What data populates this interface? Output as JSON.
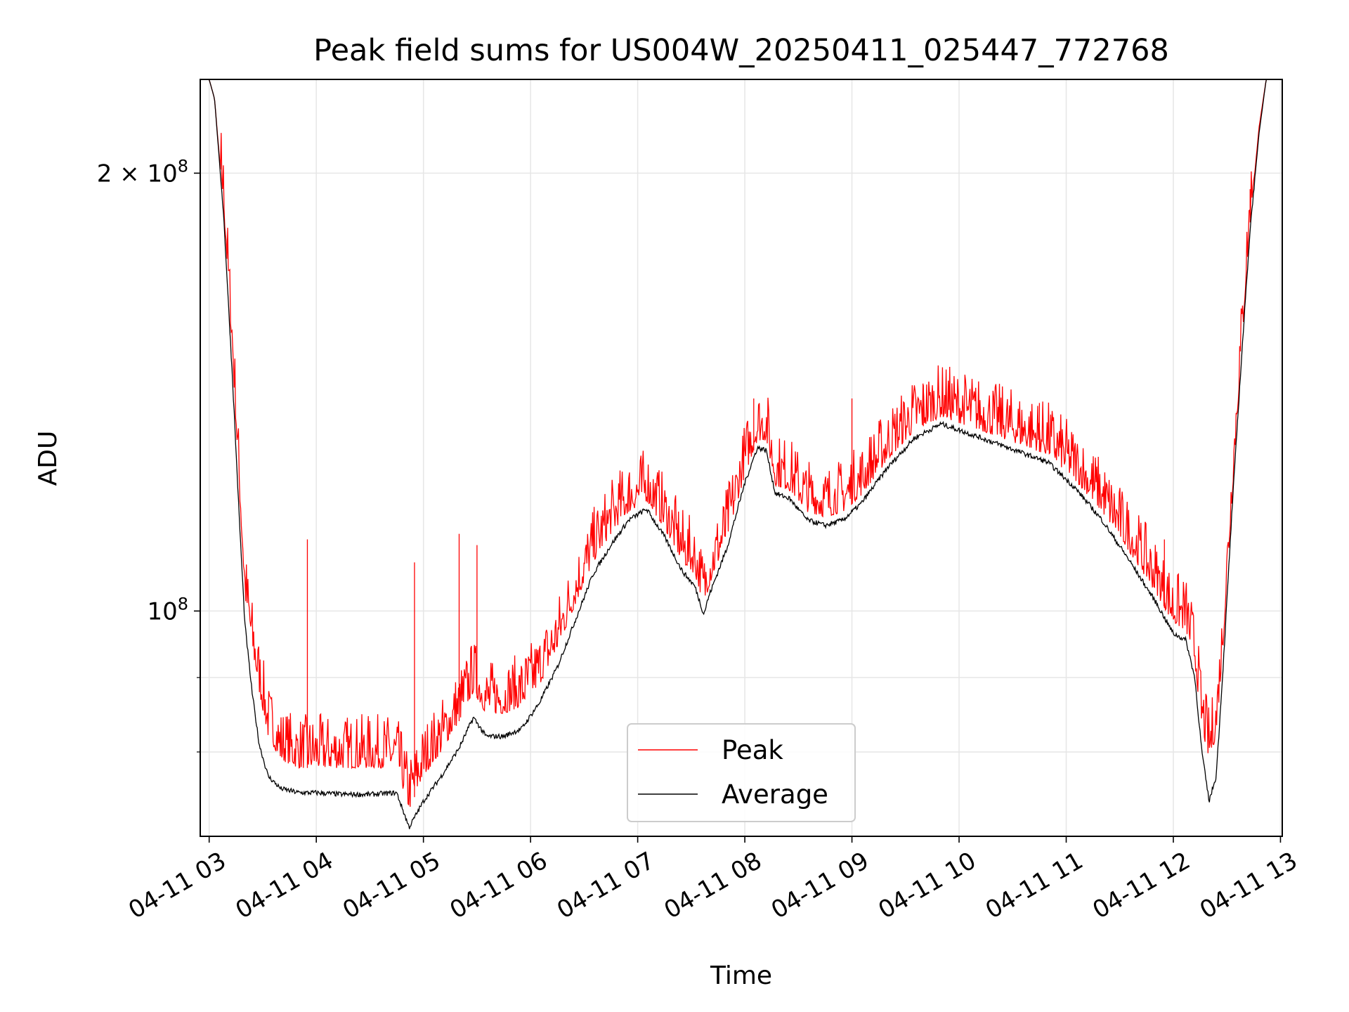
{
  "chart_data": {
    "type": "line",
    "title": "Peak field sums for US004W_20250411_025447_772768",
    "xlabel": "Time",
    "ylabel": "ADU",
    "x_range": [
      "2025-04-11 02:55",
      "2025-04-11 13:01"
    ],
    "y_scale": "log",
    "ylim": [
      70000000,
      232000000
    ],
    "grid": true,
    "legend_position": "lower-center",
    "x_ticks": [
      {
        "time": "2025-04-11 03:00",
        "label": "04-11 03"
      },
      {
        "time": "2025-04-11 04:00",
        "label": "04-11 04"
      },
      {
        "time": "2025-04-11 05:00",
        "label": "04-11 05"
      },
      {
        "time": "2025-04-11 06:00",
        "label": "04-11 06"
      },
      {
        "time": "2025-04-11 07:00",
        "label": "04-11 07"
      },
      {
        "time": "2025-04-11 08:00",
        "label": "04-11 08"
      },
      {
        "time": "2025-04-11 09:00",
        "label": "04-11 09"
      },
      {
        "time": "2025-04-11 10:00",
        "label": "04-11 10"
      },
      {
        "time": "2025-04-11 11:00",
        "label": "04-11 11"
      },
      {
        "time": "2025-04-11 12:00",
        "label": "04-11 12"
      },
      {
        "time": "2025-04-11 13:00",
        "label": "04-11 13"
      }
    ],
    "y_major_ticks": [
      {
        "value": 100000000,
        "base": "10",
        "exp": "8",
        "mantissa": ""
      },
      {
        "value": 200000000,
        "base": "10",
        "exp": "8",
        "mantissa": "2 × "
      }
    ],
    "y_minor_grid": [
      80000000,
      90000000
    ],
    "series": [
      {
        "name": "Peak",
        "color": "#ff0000",
        "points": [
          [
            "2025-04-11 02:55",
            232000000
          ],
          [
            "2025-04-11 03:00",
            232000000
          ],
          [
            "2025-04-11 03:03",
            225000000
          ],
          [
            "2025-04-11 03:08",
            190000000
          ],
          [
            "2025-04-11 03:13",
            150000000
          ],
          [
            "2025-04-11 03:17",
            120000000
          ],
          [
            "2025-04-11 03:20",
            102000000
          ],
          [
            "2025-04-11 03:24",
            94000000
          ],
          [
            "2025-04-11 03:28",
            88000000
          ],
          [
            "2025-04-11 03:33",
            82000000
          ],
          [
            "2025-04-11 03:40",
            79000000
          ],
          [
            "2025-04-11 03:50",
            78000000
          ],
          [
            "2025-04-11 04:00",
            78000000
          ],
          [
            "2025-04-11 04:15",
            78000000
          ],
          [
            "2025-04-11 04:30",
            78000000
          ],
          [
            "2025-04-11 04:45",
            78000000
          ],
          [
            "2025-04-11 04:52",
            73000000
          ],
          [
            "2025-04-11 05:00",
            77000000
          ],
          [
            "2025-04-11 05:10",
            80000000
          ],
          [
            "2025-04-11 05:20",
            84000000
          ],
          [
            "2025-04-11 05:28",
            88000000
          ],
          [
            "2025-04-11 05:35",
            85000000
          ],
          [
            "2025-04-11 05:45",
            85000000
          ],
          [
            "2025-04-11 05:55",
            86000000
          ],
          [
            "2025-04-11 06:05",
            89000000
          ],
          [
            "2025-04-11 06:15",
            94000000
          ],
          [
            "2025-04-11 06:25",
            101000000
          ],
          [
            "2025-04-11 06:35",
            108000000
          ],
          [
            "2025-04-11 06:45",
            113000000
          ],
          [
            "2025-04-11 06:55",
            117000000
          ],
          [
            "2025-04-11 07:05",
            119000000
          ],
          [
            "2025-04-11 07:15",
            114000000
          ],
          [
            "2025-04-11 07:25",
            108000000
          ],
          [
            "2025-04-11 07:32",
            106000000
          ],
          [
            "2025-04-11 07:37",
            101000000
          ],
          [
            "2025-04-11 07:40",
            104000000
          ],
          [
            "2025-04-11 07:50",
            112000000
          ],
          [
            "2025-04-11 08:00",
            124000000
          ],
          [
            "2025-04-11 08:07",
            131000000
          ],
          [
            "2025-04-11 08:12",
            131000000
          ],
          [
            "2025-04-11 08:17",
            122000000
          ],
          [
            "2025-04-11 08:25",
            121000000
          ],
          [
            "2025-04-11 08:35",
            117000000
          ],
          [
            "2025-04-11 08:45",
            116000000
          ],
          [
            "2025-04-11 08:55",
            117000000
          ],
          [
            "2025-04-11 09:05",
            120000000
          ],
          [
            "2025-04-11 09:20",
            127000000
          ],
          [
            "2025-04-11 09:35",
            133000000
          ],
          [
            "2025-04-11 09:50",
            136000000
          ],
          [
            "2025-04-11 10:05",
            134000000
          ],
          [
            "2025-04-11 10:20",
            132000000
          ],
          [
            "2025-04-11 10:35",
            130000000
          ],
          [
            "2025-04-11 10:50",
            128000000
          ],
          [
            "2025-04-11 11:05",
            123000000
          ],
          [
            "2025-04-11 11:20",
            117000000
          ],
          [
            "2025-04-11 11:35",
            110000000
          ],
          [
            "2025-04-11 11:50",
            103000000
          ],
          [
            "2025-04-11 12:00",
            98000000
          ],
          [
            "2025-04-11 12:07",
            97000000
          ],
          [
            "2025-04-11 12:12",
            92000000
          ],
          [
            "2025-04-11 12:16",
            83000000
          ],
          [
            "2025-04-11 12:20",
            79000000
          ],
          [
            "2025-04-11 12:24",
            82000000
          ],
          [
            "2025-04-11 12:28",
            95000000
          ],
          [
            "2025-04-11 12:33",
            120000000
          ],
          [
            "2025-04-11 12:38",
            150000000
          ],
          [
            "2025-04-11 12:43",
            185000000
          ],
          [
            "2025-04-11 12:48",
            215000000
          ],
          [
            "2025-04-11 12:52",
            232000000
          ],
          [
            "2025-04-11 13:01",
            232000000
          ]
        ],
        "spikes": [
          [
            "2025-04-11 03:55",
            112000000
          ],
          [
            "2025-04-11 04:55",
            108000000
          ],
          [
            "2025-04-11 05:20",
            113000000
          ],
          [
            "2025-04-11 05:30",
            111000000
          ],
          [
            "2025-04-11 06:55",
            123000000
          ],
          [
            "2025-04-11 08:05",
            140000000
          ],
          [
            "2025-04-11 09:00",
            140000000
          ],
          [
            "2025-04-11 09:40",
            143000000
          ],
          [
            "2025-04-11 10:45",
            139000000
          ],
          [
            "2025-04-11 11:55",
            112000000
          ],
          [
            "2025-04-11 12:43",
            195000000
          ]
        ]
      },
      {
        "name": "Average",
        "color": "#000000",
        "points": [
          [
            "2025-04-11 02:55",
            232000000
          ],
          [
            "2025-04-11 03:00",
            232000000
          ],
          [
            "2025-04-11 03:03",
            225000000
          ],
          [
            "2025-04-11 03:08",
            188000000
          ],
          [
            "2025-04-11 03:13",
            145000000
          ],
          [
            "2025-04-11 03:17",
            115000000
          ],
          [
            "2025-04-11 03:20",
            98000000
          ],
          [
            "2025-04-11 03:24",
            88000000
          ],
          [
            "2025-04-11 03:28",
            81000000
          ],
          [
            "2025-04-11 03:33",
            77000000
          ],
          [
            "2025-04-11 03:40",
            75500000
          ],
          [
            "2025-04-11 03:50",
            75000000
          ],
          [
            "2025-04-11 04:00",
            75000000
          ],
          [
            "2025-04-11 04:15",
            74800000
          ],
          [
            "2025-04-11 04:30",
            74800000
          ],
          [
            "2025-04-11 04:45",
            75000000
          ],
          [
            "2025-04-11 04:52",
            71000000
          ],
          [
            "2025-04-11 05:00",
            74000000
          ],
          [
            "2025-04-11 05:10",
            77000000
          ],
          [
            "2025-04-11 05:20",
            80500000
          ],
          [
            "2025-04-11 05:28",
            84500000
          ],
          [
            "2025-04-11 05:35",
            82000000
          ],
          [
            "2025-04-11 05:45",
            82000000
          ],
          [
            "2025-04-11 05:55",
            83000000
          ],
          [
            "2025-04-11 06:05",
            86500000
          ],
          [
            "2025-04-11 06:15",
            91500000
          ],
          [
            "2025-04-11 06:25",
            98500000
          ],
          [
            "2025-04-11 06:35",
            106000000
          ],
          [
            "2025-04-11 06:45",
            111000000
          ],
          [
            "2025-04-11 06:55",
            115500000
          ],
          [
            "2025-04-11 07:05",
            117500000
          ],
          [
            "2025-04-11 07:15",
            112500000
          ],
          [
            "2025-04-11 07:25",
            106500000
          ],
          [
            "2025-04-11 07:32",
            104000000
          ],
          [
            "2025-04-11 07:37",
            99500000
          ],
          [
            "2025-04-11 07:40",
            102500000
          ],
          [
            "2025-04-11 07:50",
            110500000
          ],
          [
            "2025-04-11 08:00",
            122500000
          ],
          [
            "2025-04-11 08:07",
            129500000
          ],
          [
            "2025-04-11 08:12",
            129000000
          ],
          [
            "2025-04-11 08:17",
            120500000
          ],
          [
            "2025-04-11 08:25",
            119500000
          ],
          [
            "2025-04-11 08:35",
            115500000
          ],
          [
            "2025-04-11 08:45",
            114500000
          ],
          [
            "2025-04-11 08:55",
            115500000
          ],
          [
            "2025-04-11 09:05",
            118500000
          ],
          [
            "2025-04-11 09:20",
            125500000
          ],
          [
            "2025-04-11 09:35",
            131500000
          ],
          [
            "2025-04-11 09:50",
            134500000
          ],
          [
            "2025-04-11 10:05",
            132500000
          ],
          [
            "2025-04-11 10:20",
            130500000
          ],
          [
            "2025-04-11 10:35",
            128500000
          ],
          [
            "2025-04-11 10:50",
            126500000
          ],
          [
            "2025-04-11 11:05",
            121500000
          ],
          [
            "2025-04-11 11:20",
            115500000
          ],
          [
            "2025-04-11 11:35",
            108500000
          ],
          [
            "2025-04-11 11:50",
            101500000
          ],
          [
            "2025-04-11 12:00",
            96500000
          ],
          [
            "2025-04-11 12:07",
            95500000
          ],
          [
            "2025-04-11 12:12",
            90000000
          ],
          [
            "2025-04-11 12:16",
            80000000
          ],
          [
            "2025-04-11 12:20",
            74000000
          ],
          [
            "2025-04-11 12:24",
            77000000
          ],
          [
            "2025-04-11 12:28",
            92000000
          ],
          [
            "2025-04-11 12:33",
            118000000
          ],
          [
            "2025-04-11 12:38",
            148000000
          ],
          [
            "2025-04-11 12:43",
            183000000
          ],
          [
            "2025-04-11 12:48",
            213000000
          ],
          [
            "2025-04-11 12:52",
            232000000
          ],
          [
            "2025-04-11 13:01",
            232000000
          ]
        ]
      }
    ]
  }
}
